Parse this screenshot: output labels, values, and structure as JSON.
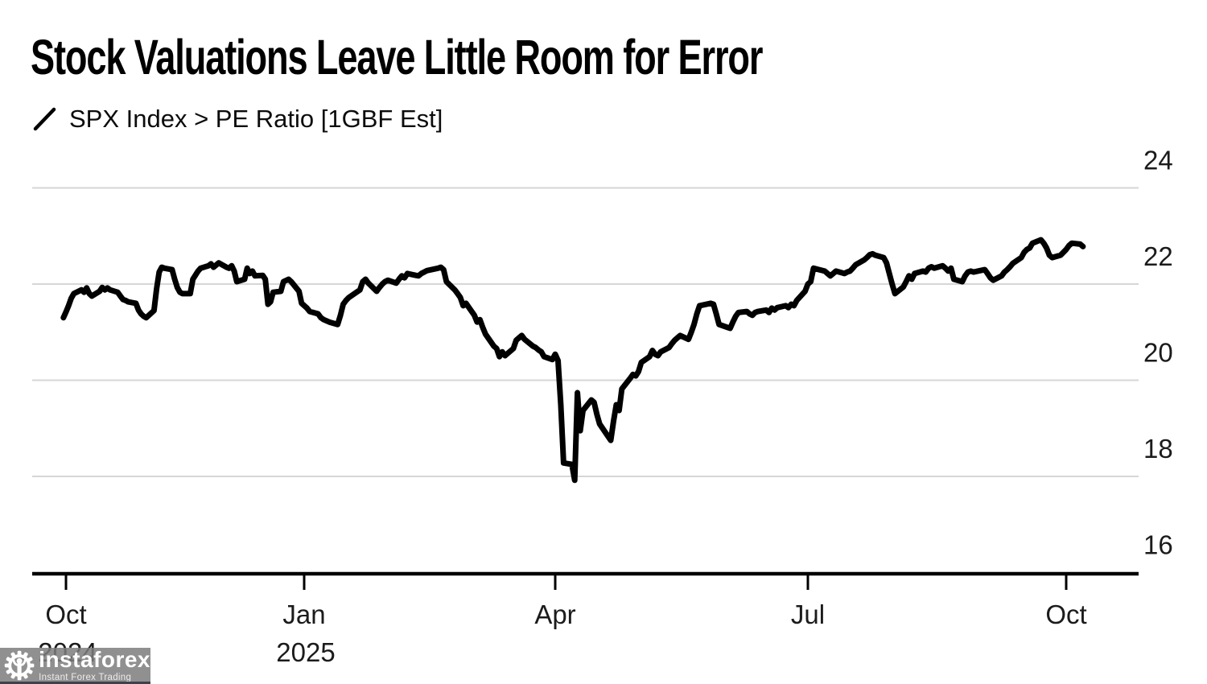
{
  "header": {
    "title": "Stock Valuations Leave Little Room for Error",
    "legend_label": "SPX Index > PE Ratio [1GBF Est]"
  },
  "watermark": {
    "brand": "instaforex",
    "tagline": "Instant Forex Trading",
    "icon": "gear-person-icon"
  },
  "colors": {
    "line": "#000000",
    "grid": "#d6d6d6",
    "axis": "#000000",
    "label": "#1b1b1b",
    "background": "#ffffff"
  },
  "chart_data": {
    "type": "line",
    "title": "Stock Valuations Leave Little Room for Error",
    "xlabel": "",
    "ylabel": "",
    "grid": "horizontal-only",
    "legend_position": "top-left",
    "y_axis": {
      "side": "right",
      "ticks": [
        24,
        22,
        20,
        18,
        16
      ],
      "range": [
        15.2,
        24.5
      ]
    },
    "x_axis": {
      "ticks": [
        {
          "label": "Oct",
          "sublabel": "2024",
          "date": "2024-10-01"
        },
        {
          "label": "Jan",
          "sublabel": "2025",
          "date": "2025-01-01"
        },
        {
          "label": "Apr",
          "sublabel": "",
          "date": "2025-04-01"
        },
        {
          "label": "Jul",
          "sublabel": "",
          "date": "2025-07-01"
        },
        {
          "label": "Oct",
          "sublabel": "",
          "date": "2025-10-01"
        }
      ]
    },
    "series": [
      {
        "name": "SPX Index > PE Ratio [1GBF Est]",
        "color": "#000000",
        "points": [
          [
            "2024-09-30",
            21.3
          ],
          [
            "2024-10-01",
            21.42
          ],
          [
            "2024-10-02",
            21.55
          ],
          [
            "2024-10-03",
            21.7
          ],
          [
            "2024-10-04",
            21.8
          ],
          [
            "2024-10-07",
            21.88
          ],
          [
            "2024-10-08",
            21.83
          ],
          [
            "2024-10-09",
            21.92
          ],
          [
            "2024-10-10",
            21.8
          ],
          [
            "2024-10-11",
            21.75
          ],
          [
            "2024-10-14",
            21.85
          ],
          [
            "2024-10-15",
            21.93
          ],
          [
            "2024-10-16",
            21.88
          ],
          [
            "2024-10-17",
            21.92
          ],
          [
            "2024-10-18",
            21.88
          ],
          [
            "2024-10-21",
            21.83
          ],
          [
            "2024-10-22",
            21.75
          ],
          [
            "2024-10-23",
            21.68
          ],
          [
            "2024-10-24",
            21.66
          ],
          [
            "2024-10-25",
            21.63
          ],
          [
            "2024-10-28",
            21.6
          ],
          [
            "2024-10-29",
            21.46
          ],
          [
            "2024-10-30",
            21.38
          ],
          [
            "2024-10-31",
            21.33
          ],
          [
            "2024-11-01",
            21.3
          ],
          [
            "2024-11-04",
            21.45
          ],
          [
            "2024-11-05",
            21.9
          ],
          [
            "2024-11-06",
            22.25
          ],
          [
            "2024-11-07",
            22.35
          ],
          [
            "2024-11-08",
            22.33
          ],
          [
            "2024-11-11",
            22.3
          ],
          [
            "2024-11-12",
            22.1
          ],
          [
            "2024-11-13",
            21.93
          ],
          [
            "2024-11-14",
            21.83
          ],
          [
            "2024-11-15",
            21.8
          ],
          [
            "2024-11-18",
            21.8
          ],
          [
            "2024-11-19",
            22.1
          ],
          [
            "2024-11-21",
            22.27
          ],
          [
            "2024-11-22",
            22.33
          ],
          [
            "2024-11-25",
            22.38
          ],
          [
            "2024-11-26",
            22.42
          ],
          [
            "2024-11-27",
            22.35
          ],
          [
            "2024-11-29",
            22.44
          ],
          [
            "2024-12-02",
            22.35
          ],
          [
            "2024-12-03",
            22.33
          ],
          [
            "2024-12-04",
            22.38
          ],
          [
            "2024-12-05",
            22.27
          ],
          [
            "2024-12-06",
            22.05
          ],
          [
            "2024-12-09",
            22.1
          ],
          [
            "2024-12-10",
            22.33
          ],
          [
            "2024-12-11",
            22.22
          ],
          [
            "2024-12-12",
            22.27
          ],
          [
            "2024-12-13",
            22.17
          ],
          [
            "2024-12-16",
            22.18
          ],
          [
            "2024-12-17",
            22.1
          ],
          [
            "2024-12-18",
            21.58
          ],
          [
            "2024-12-19",
            21.63
          ],
          [
            "2024-12-20",
            21.83
          ],
          [
            "2024-12-23",
            21.85
          ],
          [
            "2024-12-24",
            22.05
          ],
          [
            "2024-12-26",
            22.1
          ],
          [
            "2024-12-27",
            22.05
          ],
          [
            "2024-12-30",
            21.85
          ],
          [
            "2024-12-31",
            21.6
          ],
          [
            "2025-01-02",
            21.5
          ],
          [
            "2025-01-03",
            21.43
          ],
          [
            "2025-01-06",
            21.38
          ],
          [
            "2025-01-07",
            21.3
          ],
          [
            "2025-01-08",
            21.26
          ],
          [
            "2025-01-10",
            21.21
          ],
          [
            "2025-01-13",
            21.16
          ],
          [
            "2025-01-14",
            21.35
          ],
          [
            "2025-01-15",
            21.58
          ],
          [
            "2025-01-16",
            21.66
          ],
          [
            "2025-01-17",
            21.72
          ],
          [
            "2025-01-21",
            21.88
          ],
          [
            "2025-01-22",
            22.05
          ],
          [
            "2025-01-23",
            22.1
          ],
          [
            "2025-01-24",
            22.02
          ],
          [
            "2025-01-27",
            21.85
          ],
          [
            "2025-01-28",
            21.93
          ],
          [
            "2025-01-29",
            22.0
          ],
          [
            "2025-01-30",
            22.05
          ],
          [
            "2025-01-31",
            22.08
          ],
          [
            "2025-02-03",
            22.02
          ],
          [
            "2025-02-04",
            22.1
          ],
          [
            "2025-02-05",
            22.17
          ],
          [
            "2025-02-06",
            22.13
          ],
          [
            "2025-02-07",
            22.22
          ],
          [
            "2025-02-10",
            22.18
          ],
          [
            "2025-02-11",
            22.17
          ],
          [
            "2025-02-12",
            22.22
          ],
          [
            "2025-02-13",
            22.25
          ],
          [
            "2025-02-14",
            22.28
          ],
          [
            "2025-02-18",
            22.33
          ],
          [
            "2025-02-19",
            22.35
          ],
          [
            "2025-02-20",
            22.3
          ],
          [
            "2025-02-21",
            22.05
          ],
          [
            "2025-02-24",
            21.88
          ],
          [
            "2025-02-25",
            21.8
          ],
          [
            "2025-02-26",
            21.72
          ],
          [
            "2025-02-27",
            21.55
          ],
          [
            "2025-02-28",
            21.6
          ],
          [
            "2025-03-03",
            21.35
          ],
          [
            "2025-03-04",
            21.21
          ],
          [
            "2025-03-05",
            21.26
          ],
          [
            "2025-03-06",
            21.1
          ],
          [
            "2025-03-07",
            20.96
          ],
          [
            "2025-03-10",
            20.71
          ],
          [
            "2025-03-11",
            20.66
          ],
          [
            "2025-03-12",
            20.49
          ],
          [
            "2025-03-13",
            20.59
          ],
          [
            "2025-03-14",
            20.51
          ],
          [
            "2025-03-17",
            20.66
          ],
          [
            "2025-03-18",
            20.83
          ],
          [
            "2025-03-19",
            20.88
          ],
          [
            "2025-03-20",
            20.93
          ],
          [
            "2025-03-21",
            20.85
          ],
          [
            "2025-03-24",
            20.71
          ],
          [
            "2025-03-25",
            20.68
          ],
          [
            "2025-03-26",
            20.63
          ],
          [
            "2025-03-27",
            20.59
          ],
          [
            "2025-03-28",
            20.49
          ],
          [
            "2025-03-31",
            20.43
          ],
          [
            "2025-04-01",
            20.54
          ],
          [
            "2025-04-02",
            20.41
          ],
          [
            "2025-04-03",
            19.5
          ],
          [
            "2025-04-04",
            18.28
          ],
          [
            "2025-04-07",
            18.25
          ],
          [
            "2025-04-08",
            17.92
          ],
          [
            "2025-04-09",
            19.74
          ],
          [
            "2025-04-10",
            18.95
          ],
          [
            "2025-04-11",
            19.37
          ],
          [
            "2025-04-14",
            19.59
          ],
          [
            "2025-04-15",
            19.54
          ],
          [
            "2025-04-16",
            19.29
          ],
          [
            "2025-04-17",
            19.09
          ],
          [
            "2025-04-21",
            18.75
          ],
          [
            "2025-04-22",
            19.15
          ],
          [
            "2025-04-23",
            19.49
          ],
          [
            "2025-04-24",
            19.37
          ],
          [
            "2025-04-25",
            19.82
          ],
          [
            "2025-04-28",
            20.04
          ],
          [
            "2025-04-29",
            20.12
          ],
          [
            "2025-04-30",
            20.09
          ],
          [
            "2025-05-01",
            20.18
          ],
          [
            "2025-05-02",
            20.37
          ],
          [
            "2025-05-05",
            20.49
          ],
          [
            "2025-05-06",
            20.62
          ],
          [
            "2025-05-07",
            20.54
          ],
          [
            "2025-05-08",
            20.51
          ],
          [
            "2025-05-09",
            20.59
          ],
          [
            "2025-05-12",
            20.68
          ],
          [
            "2025-05-13",
            20.76
          ],
          [
            "2025-05-14",
            20.83
          ],
          [
            "2025-05-15",
            20.88
          ],
          [
            "2025-05-16",
            20.93
          ],
          [
            "2025-05-19",
            20.85
          ],
          [
            "2025-05-20",
            21.0
          ],
          [
            "2025-05-21",
            21.16
          ],
          [
            "2025-05-22",
            21.38
          ],
          [
            "2025-05-23",
            21.55
          ],
          [
            "2025-05-27",
            21.6
          ],
          [
            "2025-05-28",
            21.58
          ],
          [
            "2025-05-29",
            21.38
          ],
          [
            "2025-05-30",
            21.16
          ],
          [
            "2025-06-02",
            21.1
          ],
          [
            "2025-06-03",
            21.08
          ],
          [
            "2025-06-04",
            21.21
          ],
          [
            "2025-06-05",
            21.33
          ],
          [
            "2025-06-06",
            21.41
          ],
          [
            "2025-06-09",
            21.43
          ],
          [
            "2025-06-10",
            21.38
          ],
          [
            "2025-06-11",
            21.35
          ],
          [
            "2025-06-12",
            21.41
          ],
          [
            "2025-06-13",
            21.43
          ],
          [
            "2025-06-16",
            21.46
          ],
          [
            "2025-06-17",
            21.41
          ],
          [
            "2025-06-18",
            21.5
          ],
          [
            "2025-06-19",
            21.46
          ],
          [
            "2025-06-20",
            21.51
          ],
          [
            "2025-06-23",
            21.55
          ],
          [
            "2025-06-24",
            21.51
          ],
          [
            "2025-06-25",
            21.58
          ],
          [
            "2025-06-26",
            21.55
          ],
          [
            "2025-06-27",
            21.66
          ],
          [
            "2025-06-30",
            21.85
          ],
          [
            "2025-07-01",
            22.0
          ],
          [
            "2025-07-02",
            22.05
          ],
          [
            "2025-07-03",
            22.33
          ],
          [
            "2025-07-07",
            22.27
          ],
          [
            "2025-07-08",
            22.22
          ],
          [
            "2025-07-09",
            22.17
          ],
          [
            "2025-07-10",
            22.22
          ],
          [
            "2025-07-11",
            22.27
          ],
          [
            "2025-07-14",
            22.22
          ],
          [
            "2025-07-15",
            22.25
          ],
          [
            "2025-07-16",
            22.27
          ],
          [
            "2025-07-17",
            22.33
          ],
          [
            "2025-07-18",
            22.4
          ],
          [
            "2025-07-21",
            22.5
          ],
          [
            "2025-07-22",
            22.55
          ],
          [
            "2025-07-23",
            22.61
          ],
          [
            "2025-07-24",
            22.63
          ],
          [
            "2025-07-25",
            22.6
          ],
          [
            "2025-07-28",
            22.55
          ],
          [
            "2025-07-29",
            22.44
          ],
          [
            "2025-07-30",
            22.22
          ],
          [
            "2025-07-31",
            22.0
          ],
          [
            "2025-08-01",
            21.8
          ],
          [
            "2025-08-04",
            21.94
          ],
          [
            "2025-08-05",
            22.05
          ],
          [
            "2025-08-06",
            22.17
          ],
          [
            "2025-08-07",
            22.1
          ],
          [
            "2025-08-08",
            22.22
          ],
          [
            "2025-08-11",
            22.27
          ],
          [
            "2025-08-12",
            22.25
          ],
          [
            "2025-08-13",
            22.33
          ],
          [
            "2025-08-14",
            22.36
          ],
          [
            "2025-08-15",
            22.33
          ],
          [
            "2025-08-18",
            22.38
          ],
          [
            "2025-08-19",
            22.33
          ],
          [
            "2025-08-20",
            22.27
          ],
          [
            "2025-08-21",
            22.33
          ],
          [
            "2025-08-22",
            22.1
          ],
          [
            "2025-08-25",
            22.05
          ],
          [
            "2025-08-26",
            22.17
          ],
          [
            "2025-08-27",
            22.25
          ],
          [
            "2025-08-28",
            22.27
          ],
          [
            "2025-08-29",
            22.25
          ],
          [
            "2025-09-02",
            22.3
          ],
          [
            "2025-09-03",
            22.22
          ],
          [
            "2025-09-04",
            22.13
          ],
          [
            "2025-09-05",
            22.08
          ],
          [
            "2025-09-08",
            22.17
          ],
          [
            "2025-09-09",
            22.25
          ],
          [
            "2025-09-10",
            22.3
          ],
          [
            "2025-09-11",
            22.36
          ],
          [
            "2025-09-12",
            22.43
          ],
          [
            "2025-09-15",
            22.55
          ],
          [
            "2025-09-16",
            22.66
          ],
          [
            "2025-09-17",
            22.72
          ],
          [
            "2025-09-18",
            22.75
          ],
          [
            "2025-09-19",
            22.85
          ],
          [
            "2025-09-22",
            22.92
          ],
          [
            "2025-09-23",
            22.85
          ],
          [
            "2025-09-24",
            22.75
          ],
          [
            "2025-09-25",
            22.6
          ],
          [
            "2025-09-26",
            22.55
          ],
          [
            "2025-09-29",
            22.6
          ],
          [
            "2025-09-30",
            22.66
          ],
          [
            "2025-10-01",
            22.72
          ],
          [
            "2025-10-02",
            22.8
          ],
          [
            "2025-10-03",
            22.85
          ],
          [
            "2025-10-06",
            22.83
          ],
          [
            "2025-10-07",
            22.78
          ]
        ]
      }
    ]
  }
}
